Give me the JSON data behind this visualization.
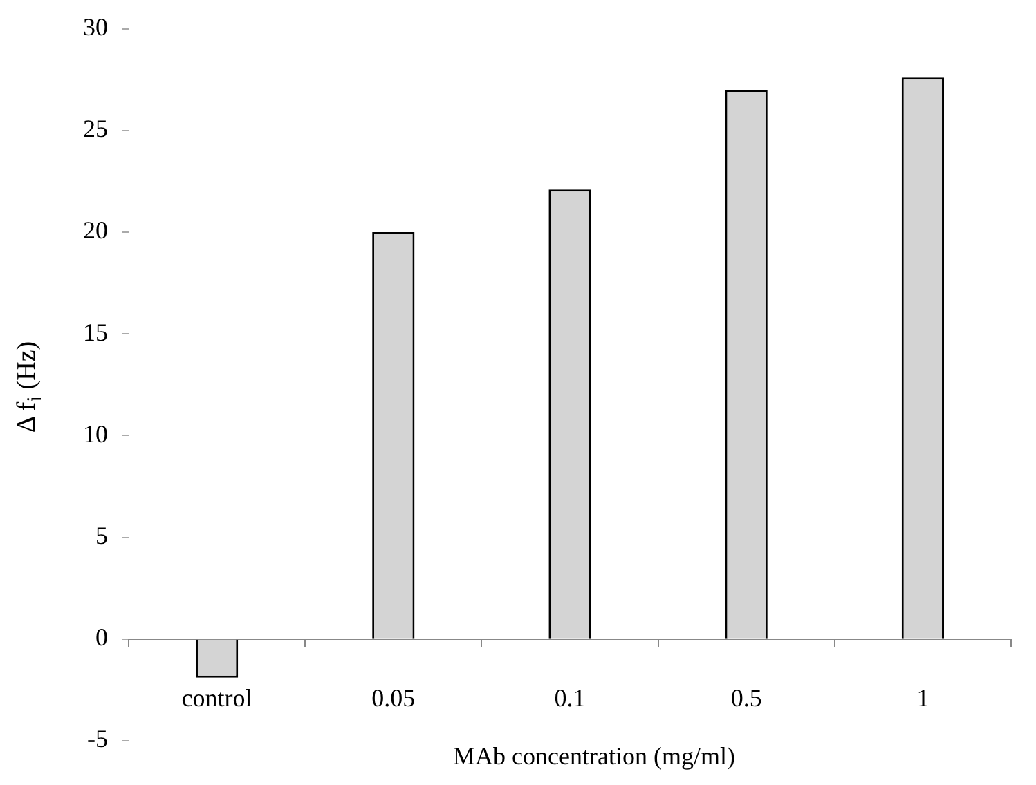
{
  "chart_data": {
    "type": "bar",
    "xlabel": "MAb concentration (mg/ml)",
    "ylabel": "Δ f$_{i}$ (Hz)",
    "categories": [
      "control",
      "0.05",
      "0.1",
      "0.5",
      "1"
    ],
    "values": [
      -1.9,
      20,
      22.1,
      27,
      27.6
    ],
    "color": "#d4d4d4",
    "ylim": [
      -5,
      30
    ],
    "yticks": [
      -5,
      0,
      5,
      10,
      15,
      20,
      25,
      30
    ]
  }
}
